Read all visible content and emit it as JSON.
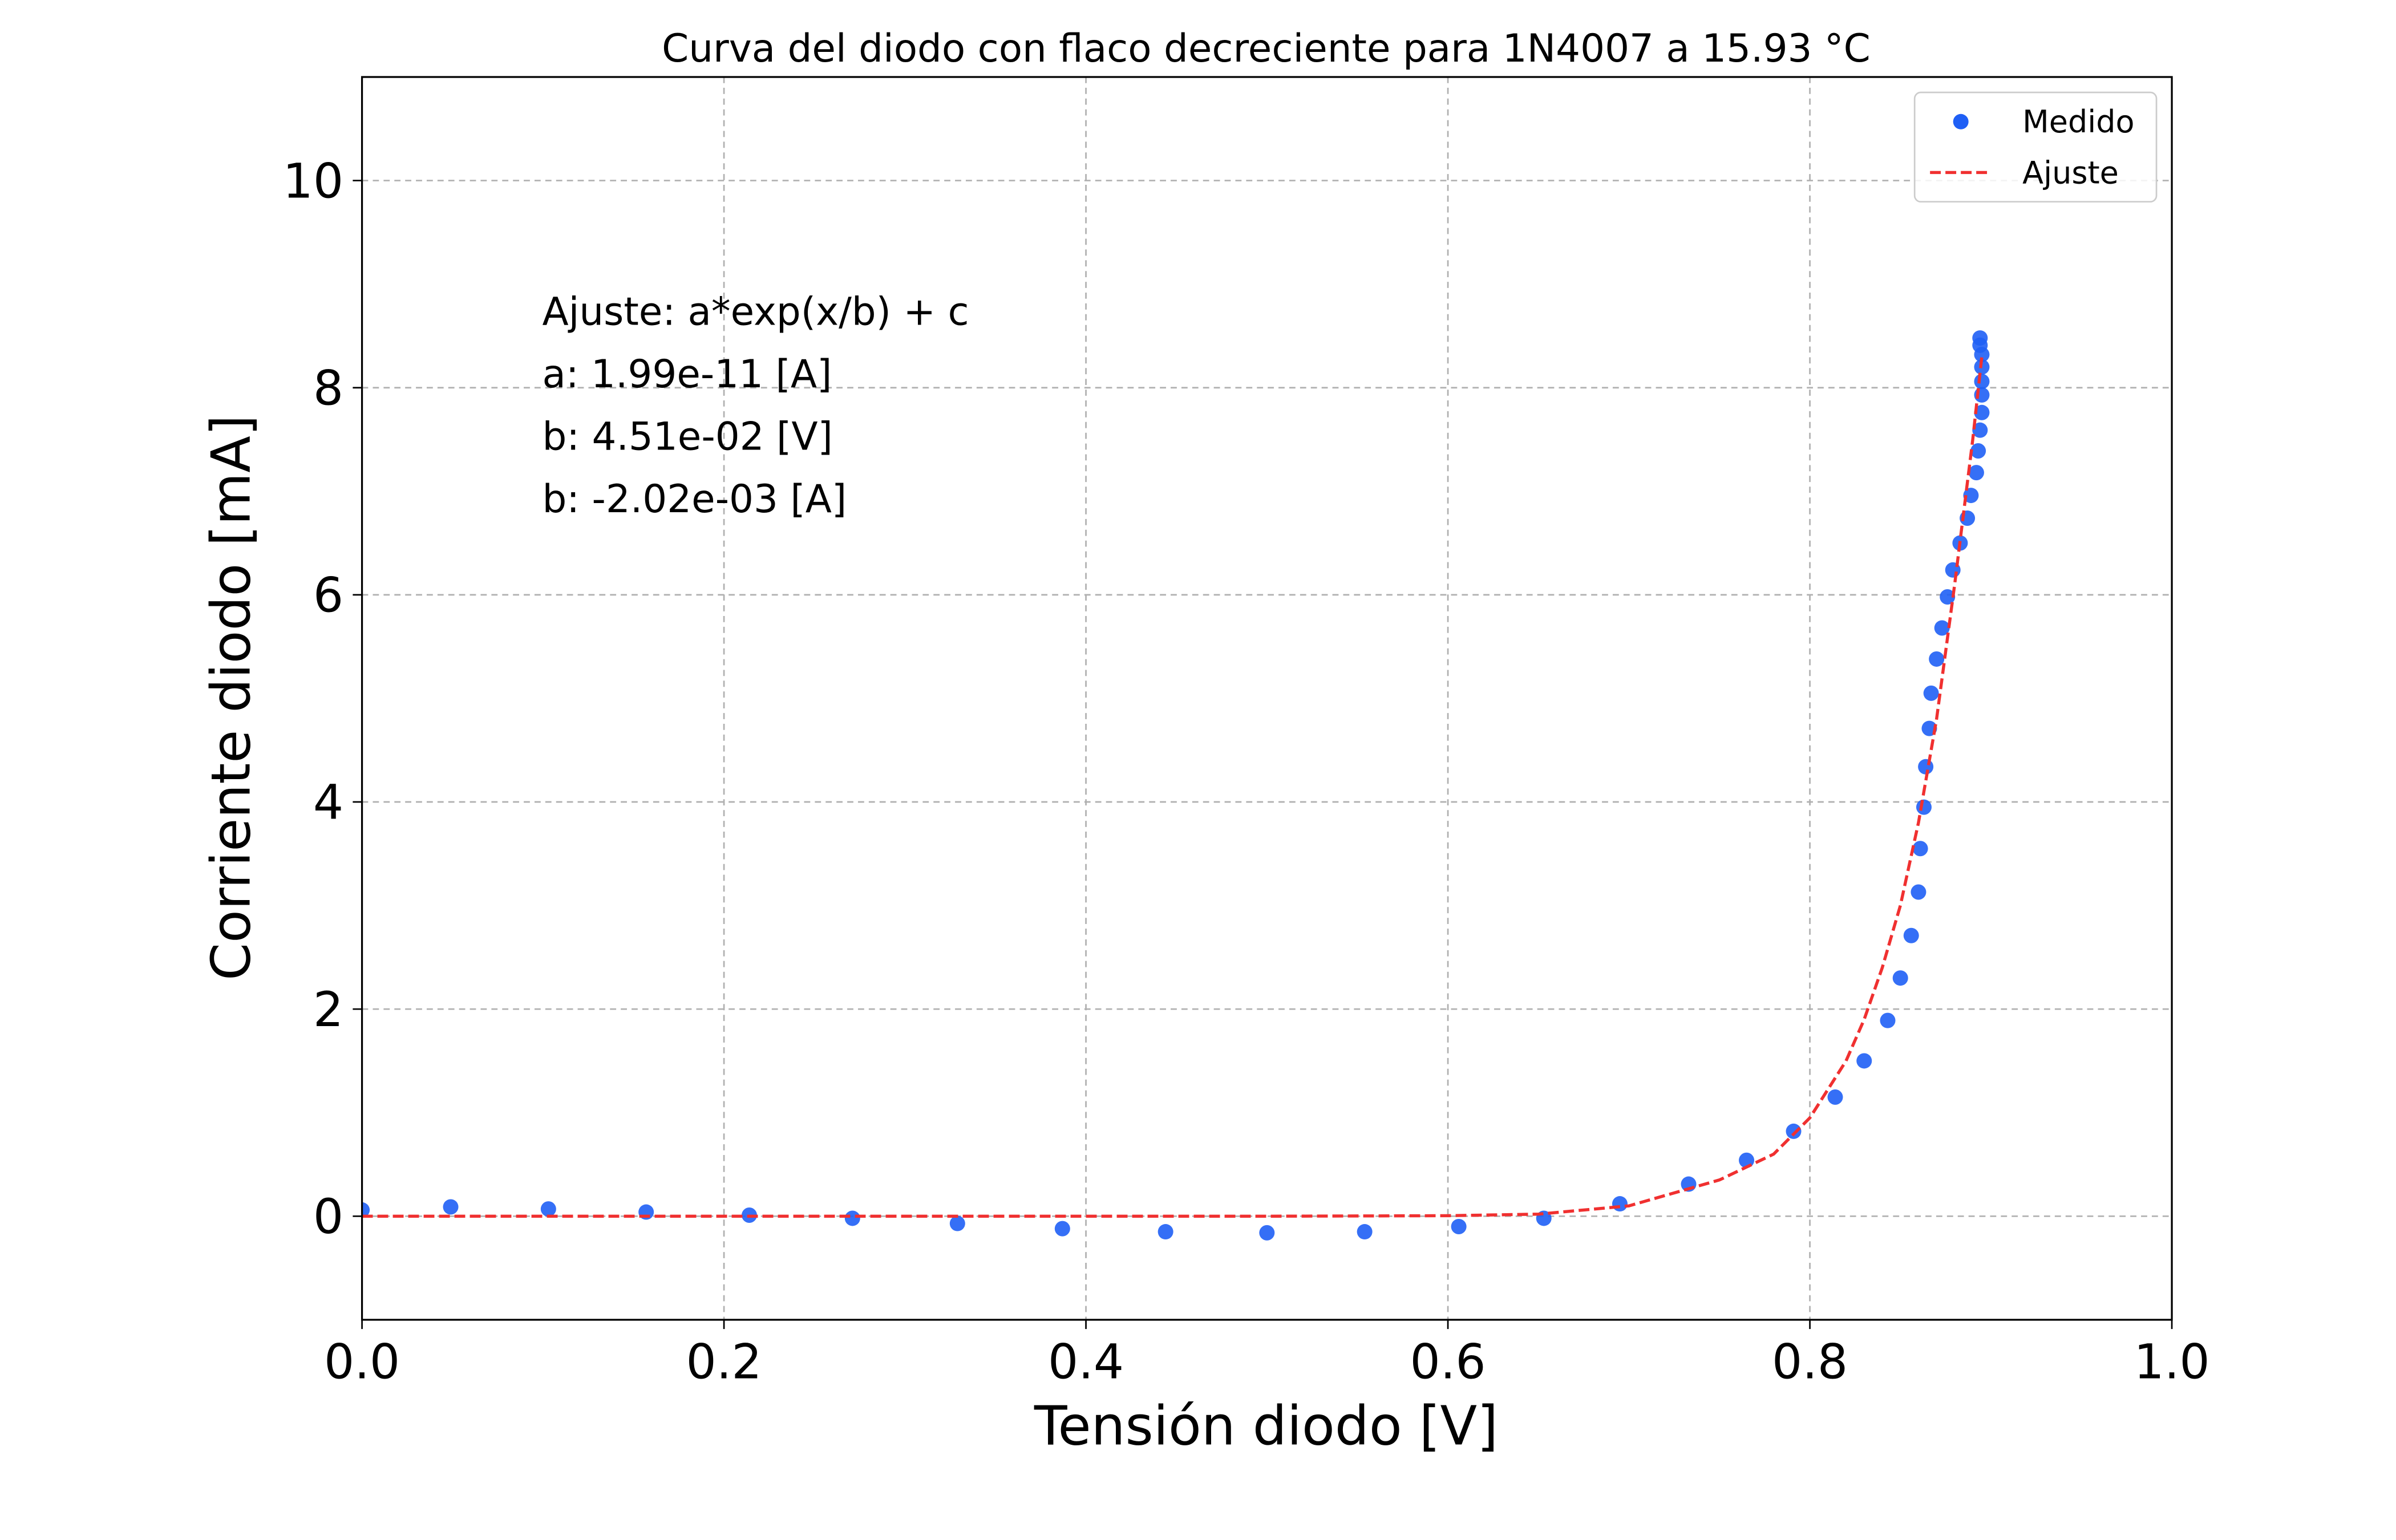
{
  "chart_data": {
    "type": "scatter",
    "title": "Curva del diodo con flaco decreciente para 1N4007 a  15.93 °C",
    "x_label": "Tensión diodo [V]",
    "y_label": "Corriente diodo [mA]",
    "xlim": [
      0,
      1
    ],
    "ylim": [
      -1,
      11
    ],
    "xticks": [
      {
        "value": 0,
        "label": "0.0"
      },
      {
        "value": 0.2,
        "label": "0.2"
      },
      {
        "value": 0.4,
        "label": "0.4"
      },
      {
        "value": 0.6,
        "label": "0.6"
      },
      {
        "value": 0.8,
        "label": "0.8"
      },
      {
        "value": 1,
        "label": "1.0"
      }
    ],
    "yticks": [
      0,
      2,
      4,
      6,
      8,
      10
    ],
    "grid": true,
    "legend": "upper right",
    "annotations": [
      "Ajuste: a*exp(x/b) + c",
      "a: 1.99e-11 [A]",
      "b: 4.51e-02 [V]",
      "b: -2.02e-03 [A]"
    ],
    "series": [
      {
        "name": "Medido",
        "color": "#1f5ff5",
        "mode": "markers",
        "x": [
          0.0,
          0.049,
          0.103,
          0.157,
          0.214,
          0.271,
          0.329,
          0.387,
          0.444,
          0.5,
          0.554,
          0.606,
          0.653,
          0.695,
          0.733,
          0.765,
          0.791,
          0.814,
          0.83,
          0.843,
          0.85,
          0.856,
          0.86,
          0.861,
          0.863,
          0.864,
          0.866,
          0.867,
          0.87,
          0.873,
          0.876,
          0.879,
          0.883,
          0.887,
          0.889,
          0.892,
          0.893,
          0.894,
          0.895,
          0.895,
          0.895,
          0.895,
          0.895,
          0.894,
          0.894
        ],
        "values": [
          0.06,
          0.09,
          0.07,
          0.04,
          0.01,
          -0.02,
          -0.07,
          -0.12,
          -0.15,
          -0.16,
          -0.15,
          -0.1,
          -0.02,
          0.12,
          0.31,
          0.54,
          0.82,
          1.15,
          1.5,
          1.89,
          2.3,
          2.71,
          3.13,
          3.55,
          3.95,
          4.34,
          4.71,
          5.05,
          5.38,
          5.68,
          5.98,
          6.24,
          6.5,
          6.74,
          6.96,
          7.18,
          7.39,
          7.59,
          7.76,
          7.93,
          8.06,
          8.2,
          8.32,
          8.41,
          8.48
        ]
      },
      {
        "name": "Ajuste",
        "color": "#f03030",
        "mode": "dashed-line",
        "x": [
          0.0,
          0.1,
          0.2,
          0.3,
          0.4,
          0.5,
          0.6,
          0.65,
          0.7,
          0.75,
          0.78,
          0.8,
          0.82,
          0.83,
          0.84,
          0.85,
          0.86,
          0.87,
          0.88,
          0.89,
          0.895
        ],
        "values": [
          0,
          0,
          0,
          0,
          0,
          0,
          0.005,
          0.02,
          0.1,
          0.35,
          0.6,
          0.95,
          1.5,
          1.9,
          2.4,
          3.0,
          3.8,
          4.8,
          6.1,
          7.5,
          8.3
        ]
      }
    ]
  }
}
